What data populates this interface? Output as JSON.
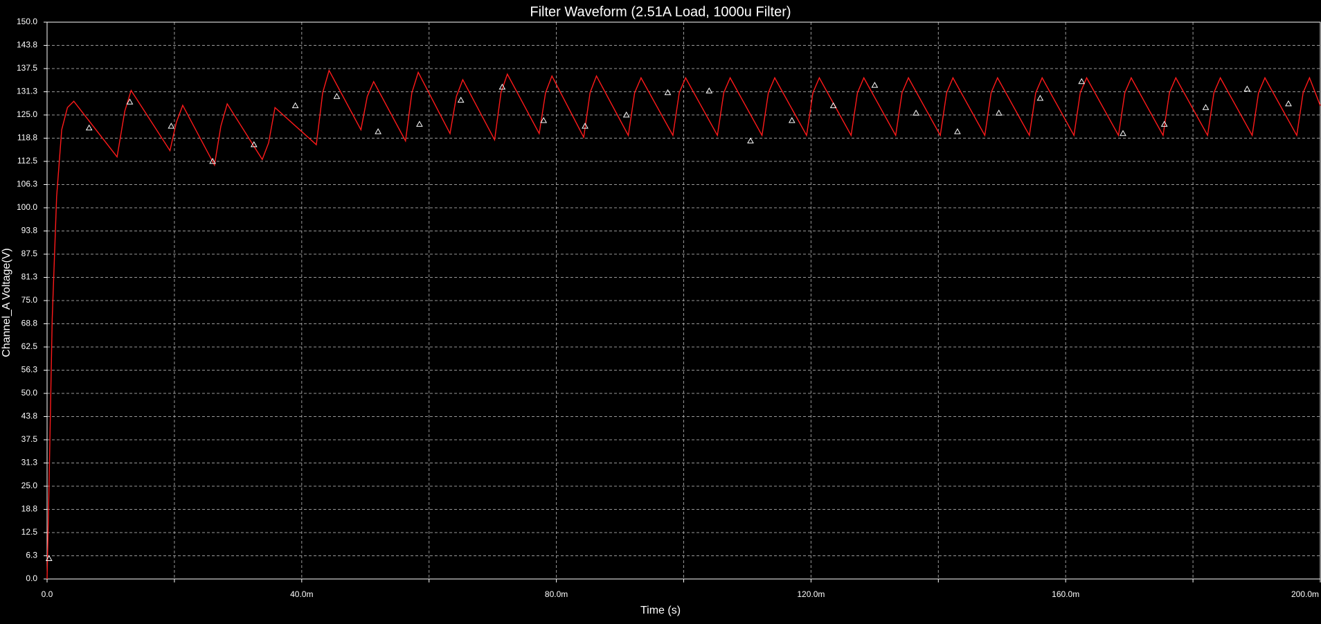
{
  "chart_data": {
    "type": "line",
    "title": "Filter Waveform (2.51A Load, 1000u Filter)",
    "xlabel": "Time (s)",
    "ylabel": "Channel_A Voltage(V)",
    "xlim": [
      0,
      0.2
    ],
    "ylim": [
      0,
      150
    ],
    "x_ticks": [
      {
        "value": 0,
        "label": "0.0"
      },
      {
        "value": 0.04,
        "label": "40.0m"
      },
      {
        "value": 0.08,
        "label": "80.0m"
      },
      {
        "value": 0.12,
        "label": "120.0m"
      },
      {
        "value": 0.16,
        "label": "160.0m"
      },
      {
        "value": 0.2,
        "label": "200.0m"
      }
    ],
    "x_grid": [
      0,
      0.02,
      0.04,
      0.06,
      0.08,
      0.1,
      0.12,
      0.14,
      0.16,
      0.18,
      0.2
    ],
    "y_ticks": [
      {
        "value": 0.0,
        "label": "0.0"
      },
      {
        "value": 6.25,
        "label": "6.3"
      },
      {
        "value": 12.5,
        "label": "12.5"
      },
      {
        "value": 18.75,
        "label": "18.8"
      },
      {
        "value": 25.0,
        "label": "25.0"
      },
      {
        "value": 31.25,
        "label": "31.3"
      },
      {
        "value": 37.5,
        "label": "37.5"
      },
      {
        "value": 43.75,
        "label": "43.8"
      },
      {
        "value": 50.0,
        "label": "50.0"
      },
      {
        "value": 56.25,
        "label": "56.3"
      },
      {
        "value": 62.5,
        "label": "62.5"
      },
      {
        "value": 68.75,
        "label": "68.8"
      },
      {
        "value": 75.0,
        "label": "75.0"
      },
      {
        "value": 81.25,
        "label": "81.3"
      },
      {
        "value": 87.5,
        "label": "87.5"
      },
      {
        "value": 93.75,
        "label": "93.8"
      },
      {
        "value": 100.0,
        "label": "100.0"
      },
      {
        "value": 106.25,
        "label": "106.3"
      },
      {
        "value": 112.5,
        "label": "112.5"
      },
      {
        "value": 118.75,
        "label": "118.8"
      },
      {
        "value": 125.0,
        "label": "125.0"
      },
      {
        "value": 131.25,
        "label": "131.3"
      },
      {
        "value": 137.5,
        "label": "137.5"
      },
      {
        "value": 143.75,
        "label": "143.8"
      },
      {
        "value": 150.0,
        "label": "150.0"
      }
    ],
    "grid": true,
    "colors": {
      "background": "#000000",
      "line": "#ff1a1a",
      "grid": "#cccccc",
      "axis": "#ffffff",
      "marker": "#ffffff"
    },
    "series": [
      {
        "x": [
          0.0,
          0.0003,
          0.0008,
          0.0015,
          0.0023,
          0.0032,
          0.0042,
          0.011,
          0.0122,
          0.0132,
          0.0193,
          0.0203,
          0.0213,
          0.0263,
          0.0273,
          0.0283,
          0.0338,
          0.0348,
          0.0358,
          0.0423,
          0.0433,
          0.0443,
          0.0493,
          0.0503,
          0.0513,
          0.0563,
          0.0573,
          0.0583,
          0.0633,
          0.0643,
          0.0653,
          0.0703,
          0.0713,
          0.0723,
          0.0773,
          0.0783,
          0.0793,
          0.0843,
          0.0853,
          0.0863,
          0.0913,
          0.0923,
          0.0933,
          0.0983,
          0.0993,
          0.1003,
          0.1053,
          0.1063,
          0.1073,
          0.1123,
          0.1133,
          0.1143,
          0.1193,
          0.1203,
          0.1213,
          0.1263,
          0.1273,
          0.1283,
          0.1333,
          0.1343,
          0.1353,
          0.1403,
          0.1413,
          0.1423,
          0.1473,
          0.1483,
          0.1493,
          0.1543,
          0.1553,
          0.1563,
          0.1613,
          0.1623,
          0.1633,
          0.1683,
          0.1693,
          0.1703,
          0.1753,
          0.1763,
          0.1773,
          0.1823,
          0.1833,
          0.1843,
          0.1893,
          0.1903,
          0.1913,
          0.1963,
          0.1973,
          0.1983,
          0.2
        ],
        "y": [
          0.0,
          25.0,
          70.0,
          103.0,
          121.0,
          127.0,
          128.7,
          113.7,
          126.0,
          131.6,
          115.4,
          123.0,
          127.6,
          111.5,
          122.0,
          128.0,
          113.0,
          117.5,
          127.0,
          117.0,
          131.0,
          137.0,
          121.0,
          130.0,
          134.0,
          118.0,
          131.0,
          136.5,
          120.0,
          130.0,
          134.5,
          118.3,
          131.0,
          136.0,
          120.0,
          131.0,
          135.5,
          119.0,
          131.0,
          135.5,
          119.5,
          131.0,
          135.0,
          119.5,
          131.0,
          135.0,
          119.5,
          131.0,
          135.0,
          119.5,
          131.0,
          135.0,
          119.5,
          131.0,
          135.0,
          119.5,
          131.0,
          135.0,
          119.5,
          131.0,
          135.0,
          119.5,
          131.0,
          135.0,
          119.5,
          131.0,
          135.0,
          119.5,
          131.0,
          135.0,
          119.5,
          131.0,
          135.0,
          119.5,
          131.0,
          135.0,
          119.5,
          131.0,
          135.0,
          119.5,
          131.0,
          135.0,
          119.5,
          131.0,
          135.0,
          119.5,
          131.0,
          135.0,
          127.5
        ]
      }
    ],
    "markers": {
      "shape": "triangle",
      "x": [
        0.0003,
        0.0066,
        0.013,
        0.0195,
        0.026,
        0.0325,
        0.039,
        0.0455,
        0.052,
        0.0585,
        0.065,
        0.0715,
        0.078,
        0.0845,
        0.091,
        0.0975,
        0.104,
        0.1105,
        0.117,
        0.1235,
        0.13,
        0.1365,
        0.143,
        0.1495,
        0.156,
        0.1625,
        0.169,
        0.1755,
        0.182,
        0.1885,
        0.195
      ],
      "y": [
        5.5,
        121.5,
        128.5,
        122.0,
        112.5,
        117.0,
        127.5,
        130.0,
        120.5,
        122.5,
        129.0,
        132.5,
        123.5,
        122.0,
        125.0,
        131.0,
        131.5,
        118.0,
        123.5,
        127.5,
        133.0,
        125.5,
        120.5,
        125.5,
        129.5,
        134.0,
        120.0,
        122.5,
        127.0,
        132.0,
        128.0
      ]
    }
  }
}
